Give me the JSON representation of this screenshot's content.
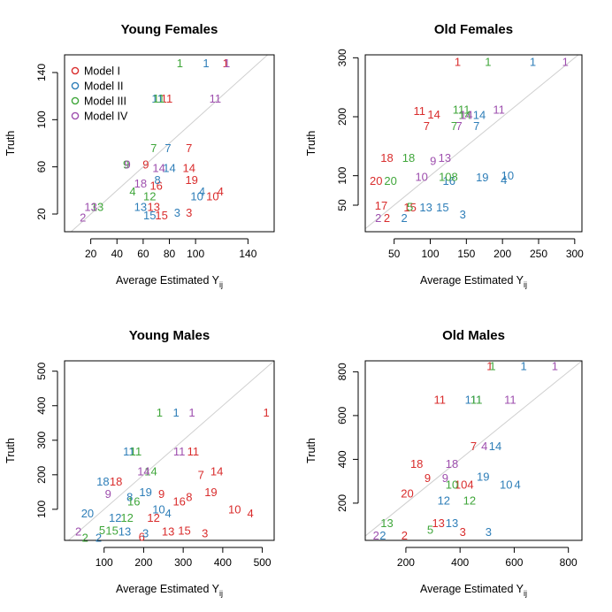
{
  "colors": {
    "Model I": "#DF536B",
    "Model II": "#2297E6",
    "Model III": "#61D04F",
    "Model IV": "#CD0BBC",
    "Model I_draw": "#D92C2C",
    "Model II_draw": "#2E7EB8",
    "Model III_draw": "#3FA63A",
    "Model IV_draw": "#9E4FAE",
    "reference_line": "#cfcfcf",
    "frame": "#000000"
  },
  "legend_labels": [
    "Model I",
    "Model II",
    "Model III",
    "Model IV"
  ],
  "chart_data": [
    {
      "type": "scatter",
      "title": "Young Females",
      "xlabel": "Average Estimated Y",
      "xlabel_subscript": "ij",
      "ylabel": "Truth",
      "xlim": [
        0,
        160
      ],
      "ylim": [
        5,
        155
      ],
      "xticks": [
        20,
        40,
        60,
        80,
        100,
        140
      ],
      "yticks": [
        20,
        60,
        100,
        140
      ],
      "reference_line": "y = x",
      "legend": "top-left",
      "series": [
        {
          "name": "Model I",
          "points": [
            {
              "label": "1",
              "x": 123,
              "y": 148
            },
            {
              "label": "11",
              "x": 78,
              "y": 118
            },
            {
              "label": "7",
              "x": 95,
              "y": 76
            },
            {
              "label": "9",
              "x": 62,
              "y": 62
            },
            {
              "label": "14",
              "x": 95,
              "y": 59
            },
            {
              "label": "19",
              "x": 97,
              "y": 49
            },
            {
              "label": "16",
              "x": 70,
              "y": 44
            },
            {
              "label": "4",
              "x": 119,
              "y": 39
            },
            {
              "label": "10",
              "x": 113,
              "y": 35
            },
            {
              "label": "13",
              "x": 68,
              "y": 26
            },
            {
              "label": "15",
              "x": 74,
              "y": 19
            },
            {
              "label": "3",
              "x": 95,
              "y": 21
            }
          ]
        },
        {
          "name": "Model II",
          "points": [
            {
              "label": "1",
              "x": 108,
              "y": 148
            },
            {
              "label": "11",
              "x": 71,
              "y": 118
            },
            {
              "label": "7",
              "x": 79,
              "y": 76
            },
            {
              "label": "14",
              "x": 80,
              "y": 59
            },
            {
              "label": "8",
              "x": 71,
              "y": 49
            },
            {
              "label": "4",
              "x": 105,
              "y": 39
            },
            {
              "label": "10",
              "x": 101,
              "y": 35
            },
            {
              "label": "13",
              "x": 58,
              "y": 26
            },
            {
              "label": "15",
              "x": 65,
              "y": 19
            },
            {
              "label": "3",
              "x": 86,
              "y": 21
            }
          ]
        },
        {
          "name": "Model III",
          "points": [
            {
              "label": "1",
              "x": 88,
              "y": 148
            },
            {
              "label": "11",
              "x": 72,
              "y": 118
            },
            {
              "label": "7",
              "x": 68,
              "y": 76
            },
            {
              "label": "9",
              "x": 47,
              "y": 62
            },
            {
              "label": "4",
              "x": 52,
              "y": 39
            },
            {
              "label": "12",
              "x": 65,
              "y": 35
            },
            {
              "label": "13",
              "x": 25,
              "y": 26
            }
          ]
        },
        {
          "name": "Model IV",
          "points": [
            {
              "label": "1",
              "x": 124,
              "y": 148
            },
            {
              "label": "11",
              "x": 115,
              "y": 118
            },
            {
              "label": "9",
              "x": 48,
              "y": 62
            },
            {
              "label": "14",
              "x": 72,
              "y": 59
            },
            {
              "label": "18",
              "x": 58,
              "y": 46
            },
            {
              "label": "13",
              "x": 20,
              "y": 26
            },
            {
              "label": "2",
              "x": 14,
              "y": 17
            }
          ]
        }
      ]
    },
    {
      "type": "scatter",
      "title": "Old Females",
      "xlabel": "Average Estimated Y",
      "xlabel_subscript": "ij",
      "ylabel": "Truth",
      "xlim": [
        10,
        310
      ],
      "ylim": [
        5,
        305
      ],
      "xticks": [
        50,
        100,
        150,
        200,
        250,
        300
      ],
      "yticks": [
        50,
        100,
        200,
        300
      ],
      "reference_line": "y = x",
      "legend": "none",
      "series": [
        {
          "name": "Model I",
          "points": [
            {
              "label": "1",
              "x": 138,
              "y": 293
            },
            {
              "label": "11",
              "x": 85,
              "y": 210
            },
            {
              "label": "14",
              "x": 105,
              "y": 204
            },
            {
              "label": "7",
              "x": 95,
              "y": 184
            },
            {
              "label": "18",
              "x": 40,
              "y": 130
            },
            {
              "label": "20",
              "x": 25,
              "y": 91
            },
            {
              "label": "17",
              "x": 32,
              "y": 49
            },
            {
              "label": "15",
              "x": 72,
              "y": 46
            },
            {
              "label": "2",
              "x": 40,
              "y": 28
            }
          ]
        },
        {
          "name": "Model II",
          "points": [
            {
              "label": "1",
              "x": 242,
              "y": 293
            },
            {
              "label": "14",
              "x": 168,
              "y": 203
            },
            {
              "label": "7",
              "x": 164,
              "y": 184
            },
            {
              "label": "19",
              "x": 172,
              "y": 97
            },
            {
              "label": "10",
              "x": 207,
              "y": 100
            },
            {
              "label": "4",
              "x": 202,
              "y": 93
            },
            {
              "label": "16",
              "x": 126,
              "y": 91
            },
            {
              "label": "13",
              "x": 94,
              "y": 46
            },
            {
              "label": "15",
              "x": 117,
              "y": 46
            },
            {
              "label": "3",
              "x": 145,
              "y": 34
            },
            {
              "label": "2",
              "x": 64,
              "y": 28
            }
          ]
        },
        {
          "name": "Model III",
          "points": [
            {
              "label": "1",
              "x": 180,
              "y": 293
            },
            {
              "label": "111",
              "x": 143,
              "y": 212
            },
            {
              "label": "14",
              "x": 148,
              "y": 203
            },
            {
              "label": "7",
              "x": 133,
              "y": 184
            },
            {
              "label": "18",
              "x": 70,
              "y": 130
            },
            {
              "label": "108",
              "x": 125,
              "y": 98
            },
            {
              "label": "20",
              "x": 45,
              "y": 91
            },
            {
              "label": "5",
              "x": 72,
              "y": 47
            }
          ]
        },
        {
          "name": "Model IV",
          "points": [
            {
              "label": "1",
              "x": 287,
              "y": 293
            },
            {
              "label": "14",
              "x": 150,
              "y": 203
            },
            {
              "label": "11",
              "x": 195,
              "y": 212
            },
            {
              "label": "7",
              "x": 140,
              "y": 184
            },
            {
              "label": "9",
              "x": 104,
              "y": 125
            },
            {
              "label": "13",
              "x": 120,
              "y": 130
            },
            {
              "label": "10",
              "x": 88,
              "y": 98
            },
            {
              "label": "2",
              "x": 28,
              "y": 28
            }
          ]
        }
      ]
    },
    {
      "type": "scatter",
      "title": "Young Males",
      "xlabel": "Average Estimated Y",
      "xlabel_subscript": "ij",
      "ylabel": "Truth",
      "xlim": [
        0,
        530
      ],
      "ylim": [
        10,
        530
      ],
      "xticks": [
        100,
        200,
        300,
        400,
        500
      ],
      "yticks": [
        100,
        200,
        300,
        400,
        500
      ],
      "reference_line": "y = x",
      "legend": "none",
      "series": [
        {
          "name": "Model I",
          "points": [
            {
              "label": "1",
              "x": 510,
              "y": 380
            },
            {
              "label": "11",
              "x": 325,
              "y": 268
            },
            {
              "label": "18",
              "x": 130,
              "y": 180
            },
            {
              "label": "7",
              "x": 345,
              "y": 200
            },
            {
              "label": "14",
              "x": 385,
              "y": 210
            },
            {
              "label": "19",
              "x": 370,
              "y": 150
            },
            {
              "label": "8",
              "x": 315,
              "y": 135
            },
            {
              "label": "16",
              "x": 290,
              "y": 123
            },
            {
              "label": "10",
              "x": 430,
              "y": 100
            },
            {
              "label": "4",
              "x": 470,
              "y": 88
            },
            {
              "label": "9",
              "x": 245,
              "y": 145
            },
            {
              "label": "12",
              "x": 225,
              "y": 75
            },
            {
              "label": "13",
              "x": 262,
              "y": 35
            },
            {
              "label": "15",
              "x": 303,
              "y": 38
            },
            {
              "label": "3",
              "x": 355,
              "y": 30
            },
            {
              "label": "6",
              "x": 195,
              "y": 20
            }
          ]
        },
        {
          "name": "Model II",
          "points": [
            {
              "label": "1",
              "x": 282,
              "y": 380
            },
            {
              "label": "11",
              "x": 163,
              "y": 268
            },
            {
              "label": "18",
              "x": 97,
              "y": 180
            },
            {
              "label": "19",
              "x": 205,
              "y": 150
            },
            {
              "label": "8",
              "x": 165,
              "y": 135
            },
            {
              "label": "10",
              "x": 238,
              "y": 100
            },
            {
              "label": "4",
              "x": 262,
              "y": 88
            },
            {
              "label": "12",
              "x": 128,
              "y": 75
            },
            {
              "label": "20",
              "x": 58,
              "y": 88
            },
            {
              "label": "3",
              "x": 205,
              "y": 30
            },
            {
              "label": "13",
              "x": 152,
              "y": 35
            },
            {
              "label": "2",
              "x": 86,
              "y": 18
            }
          ]
        },
        {
          "name": "Model III",
          "points": [
            {
              "label": "1",
              "x": 240,
              "y": 380
            },
            {
              "label": "11",
              "x": 180,
              "y": 268
            },
            {
              "label": "14",
              "x": 218,
              "y": 210
            },
            {
              "label": "16",
              "x": 175,
              "y": 123
            },
            {
              "label": "12",
              "x": 158,
              "y": 75
            },
            {
              "label": "5",
              "x": 95,
              "y": 40
            },
            {
              "label": "15",
              "x": 120,
              "y": 38
            },
            {
              "label": "2",
              "x": 52,
              "y": 18
            }
          ]
        },
        {
          "name": "Model IV",
          "points": [
            {
              "label": "1",
              "x": 322,
              "y": 380
            },
            {
              "label": "11",
              "x": 290,
              "y": 268
            },
            {
              "label": "14",
              "x": 200,
              "y": 210
            },
            {
              "label": "9",
              "x": 110,
              "y": 145
            },
            {
              "label": "2",
              "x": 35,
              "y": 35
            }
          ]
        }
      ]
    },
    {
      "type": "scatter",
      "title": "Old Males",
      "xlabel": "Average Estimated Y",
      "xlabel_subscript": "ij",
      "ylabel": "Truth",
      "xlim": [
        50,
        850
      ],
      "ylim": [
        30,
        850
      ],
      "xticks": [
        200,
        400,
        600,
        800
      ],
      "yticks": [
        200,
        400,
        600,
        800
      ],
      "reference_line": "y = x",
      "legend": "none",
      "series": [
        {
          "name": "Model I",
          "points": [
            {
              "label": "1",
              "x": 510,
              "y": 825
            },
            {
              "label": "11",
              "x": 325,
              "y": 672
            },
            {
              "label": "7",
              "x": 450,
              "y": 460
            },
            {
              "label": "18",
              "x": 240,
              "y": 380
            },
            {
              "label": "9",
              "x": 280,
              "y": 315
            },
            {
              "label": "104",
              "x": 415,
              "y": 285
            },
            {
              "label": "20",
              "x": 205,
              "y": 245
            },
            {
              "label": "13",
              "x": 320,
              "y": 108
            },
            {
              "label": "3",
              "x": 410,
              "y": 68
            },
            {
              "label": "2",
              "x": 195,
              "y": 52
            }
          ]
        },
        {
          "name": "Model II",
          "points": [
            {
              "label": "1",
              "x": 635,
              "y": 825
            },
            {
              "label": "111",
              "x": 450,
              "y": 672
            },
            {
              "label": "14",
              "x": 530,
              "y": 460
            },
            {
              "label": "19",
              "x": 485,
              "y": 320
            },
            {
              "label": "10",
              "x": 570,
              "y": 285
            },
            {
              "label": "4",
              "x": 612,
              "y": 285
            },
            {
              "label": "12",
              "x": 340,
              "y": 212
            },
            {
              "label": "3",
              "x": 505,
              "y": 68
            },
            {
              "label": "13",
              "x": 370,
              "y": 108
            },
            {
              "label": "2",
              "x": 115,
              "y": 52
            }
          ]
        },
        {
          "name": "Model III",
          "points": [
            {
              "label": "1",
              "x": 520,
              "y": 825
            },
            {
              "label": "11",
              "x": 460,
              "y": 672
            },
            {
              "label": "10",
              "x": 370,
              "y": 285
            },
            {
              "label": "12",
              "x": 435,
              "y": 212
            },
            {
              "label": "5",
              "x": 290,
              "y": 78
            },
            {
              "label": "13",
              "x": 130,
              "y": 108
            }
          ]
        },
        {
          "name": "Model IV",
          "points": [
            {
              "label": "1",
              "x": 750,
              "y": 825
            },
            {
              "label": "11",
              "x": 585,
              "y": 672
            },
            {
              "label": "18",
              "x": 370,
              "y": 380
            },
            {
              "label": "4",
              "x": 490,
              "y": 460
            },
            {
              "label": "9",
              "x": 345,
              "y": 315
            },
            {
              "label": "2",
              "x": 90,
              "y": 52
            }
          ]
        }
      ]
    }
  ]
}
